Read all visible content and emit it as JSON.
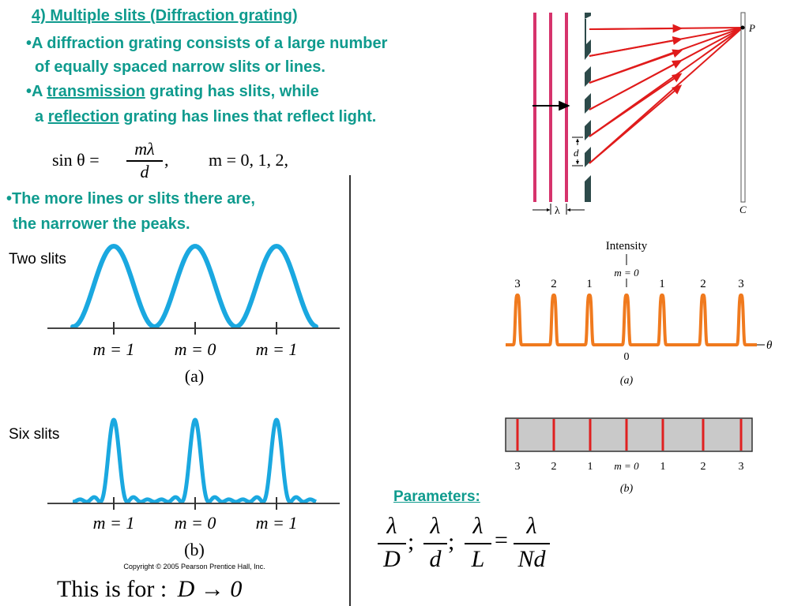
{
  "heading": "4) Multiple slits (Diffraction grating)",
  "bullets": {
    "b1_line1": "•A diffraction grating consists of a large number",
    "b1_line2": "of equally spaced narrow slits or lines.",
    "b2_line1_pre": "•A ",
    "b2_line1_key": "transmission",
    "b2_line1_post": " grating has slits, while",
    "b2_line2_pre": "a ",
    "b2_line2_key": "reflection",
    "b2_line2_post": " grating has lines that reflect light.",
    "b3_line1": "•The more lines or slits there are,",
    "b3_line2": "the narrower the peaks."
  },
  "formula": {
    "lhs": "sin θ =",
    "num": "mλ",
    "den": "d",
    "comma": ",",
    "m_values": "m = 0, 1, 2,"
  },
  "apparatus": {
    "d_label": "d",
    "lambda_label": "λ",
    "P_label": "P",
    "C_label": "C"
  },
  "two_slits": {
    "title": "Two slits",
    "tick_labels": [
      "m = 1",
      "m = 0",
      "m = 1"
    ],
    "caption": "(a)",
    "color": "#1aa8e0"
  },
  "six_slits": {
    "title": "Six slits",
    "tick_labels": [
      "m = 1",
      "m = 0",
      "m = 1"
    ],
    "caption": "(b)",
    "copyright": "Copyright © 2005 Pearson Prentice Hall, Inc.",
    "color": "#1aa8e0"
  },
  "intensity_plot": {
    "ylabel": "Intensity",
    "m0_label": "m = 0",
    "orders_top": [
      "3",
      "2",
      "1",
      "1",
      "2",
      "3"
    ],
    "zero_label": "0",
    "axis_label": "θ",
    "caption": "(a)",
    "color": "#f07a1e"
  },
  "line_strip": {
    "labels": [
      "3",
      "2",
      "1",
      "m = 0",
      "1",
      "2",
      "3"
    ],
    "caption": "(b)",
    "line_color": "#e02020",
    "bg_color": "#c9c9c9"
  },
  "parameters": {
    "title": "Parameters:",
    "fractions": [
      {
        "num": "λ",
        "den": "D",
        "sep": ";"
      },
      {
        "num": "λ",
        "den": "d",
        "sep": ";"
      },
      {
        "num": "λ",
        "den": "L",
        "sep": "="
      },
      {
        "num": "λ",
        "den": "Nd",
        "sep": ""
      }
    ]
  },
  "footer": {
    "text": "This is for :",
    "expr": "D → 0"
  }
}
